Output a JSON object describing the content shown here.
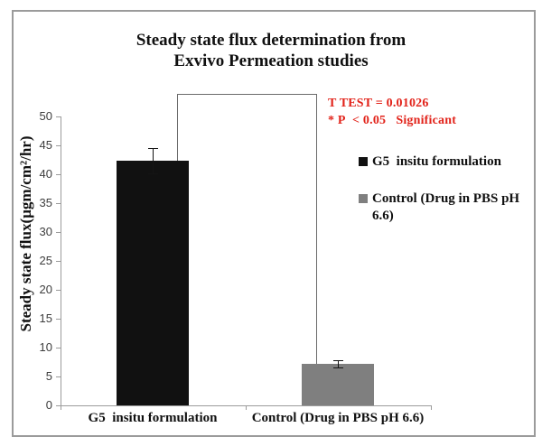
{
  "title": {
    "lines": [
      "Steady state flux determination from",
      "Exvivo Permeation studies"
    ]
  },
  "stats": {
    "lines": [
      "T TEST = 0.01026",
      "* P  < 0.05   Significant"
    ],
    "color": "#e2231a"
  },
  "legend": {
    "position": "right",
    "items": [
      {
        "label": "G5  insitu formulation",
        "color": "#111111"
      },
      {
        "label": "Control (Drug in PBS pH 6.6)",
        "color": "#7f7f7f"
      }
    ]
  },
  "chart_data": {
    "type": "bar",
    "title": "Steady state flux determination from Exvivo Permeation studies",
    "categories": [
      "G5  insitu formulation",
      "Control (Drug in PBS pH 6.6)"
    ],
    "values": [
      42.4,
      7.2
    ],
    "error_bars": [
      2.2,
      0.6
    ],
    "bar_colors": [
      "#111111",
      "#7f7f7f"
    ],
    "xlabel": "",
    "ylabel": "Steady state flux(µgm/cm²/hr)",
    "ylim": [
      0,
      50
    ],
    "yticks": [
      0,
      5,
      10,
      15,
      20,
      25,
      30,
      35,
      40,
      45,
      50
    ],
    "grid": false,
    "legend_position": "right",
    "annotations": [
      {
        "text": "T TEST = 0.01026",
        "color": "#e2231a"
      },
      {
        "text": "* P < 0.05 Significant",
        "color": "#e2231a"
      },
      {
        "type": "significance-bracket",
        "between": [
          "G5 insitu formulation",
          "Control (Drug in PBS pH 6.6)"
        ]
      }
    ]
  }
}
